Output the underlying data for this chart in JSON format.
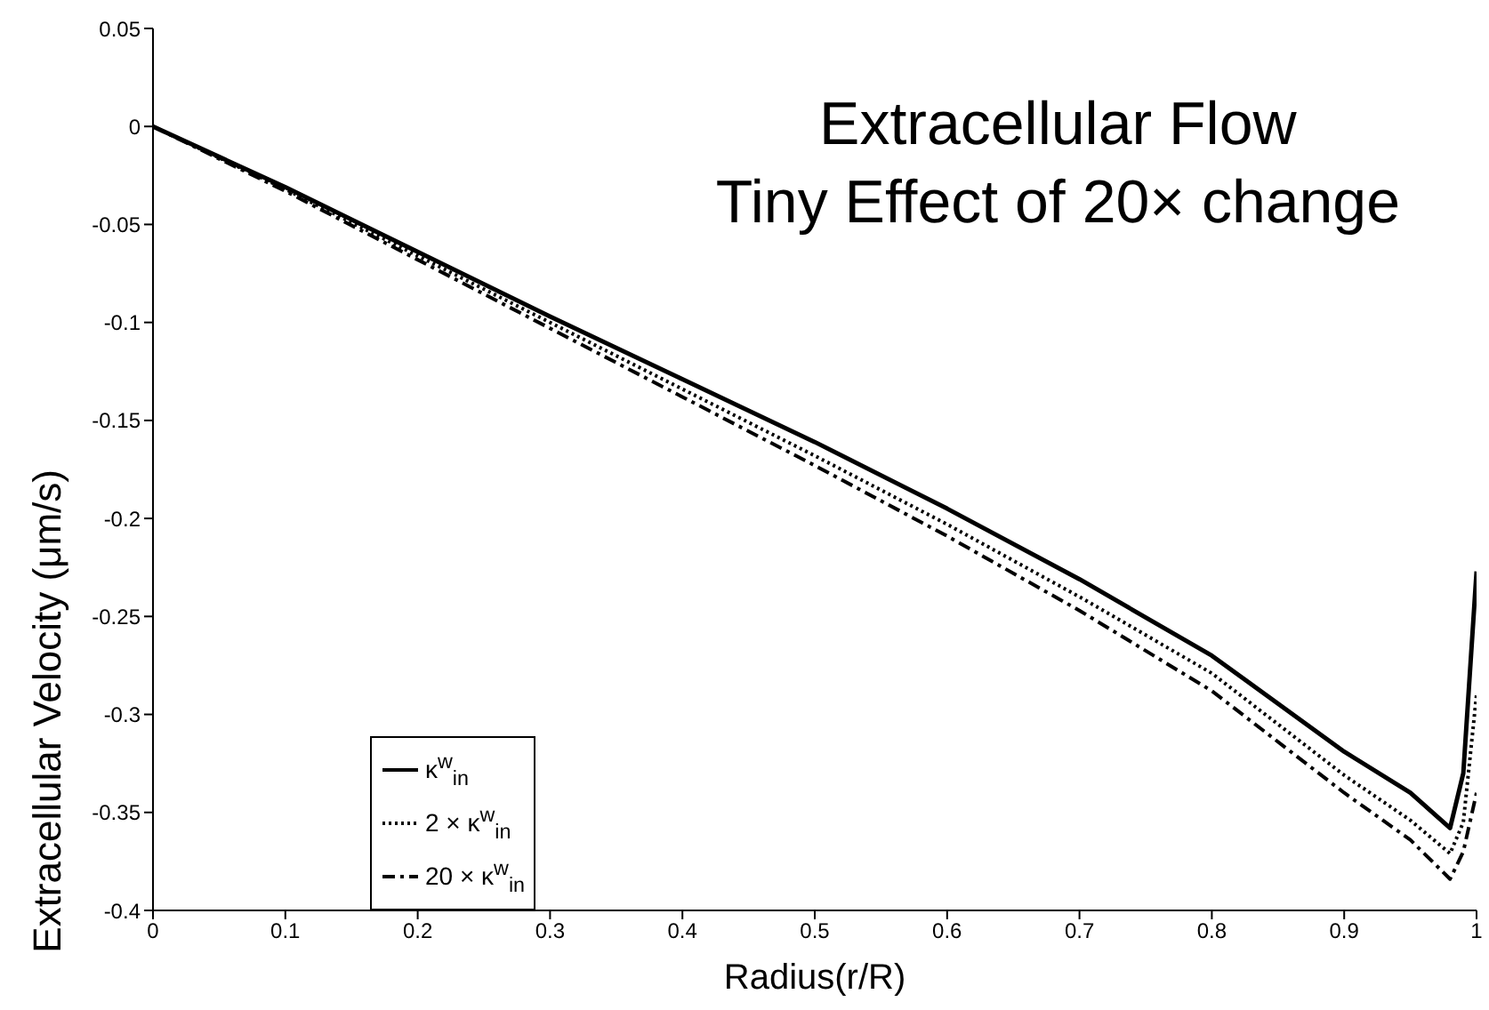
{
  "chart_data": {
    "type": "line",
    "xlabel": "Radius(r/R)",
    "ylabel": "Extracellular Velocity (μm/s)",
    "annotations": [
      "Extracellular Flow",
      "Tiny Effect of 20× change"
    ],
    "x": [
      0,
      0.1,
      0.2,
      0.3,
      0.4,
      0.5,
      0.6,
      0.7,
      0.8,
      0.9,
      0.95,
      0.98,
      0.99,
      1
    ],
    "series": [
      {
        "name": "κ$^{w}$$_{in}$",
        "color": "#000000",
        "line_style": "solid",
        "values": [
          0,
          -0.031,
          -0.064,
          -0.097,
          -0.129,
          -0.161,
          -0.195,
          -0.231,
          -0.27,
          -0.319,
          -0.34,
          -0.358,
          -0.33,
          -0.227
        ]
      },
      {
        "name": "2 × κ$^{w}$$_{in}$",
        "color": "#000000",
        "line_style": "dotted",
        "values": [
          0,
          -0.032,
          -0.066,
          -0.1,
          -0.134,
          -0.168,
          -0.203,
          -0.24,
          -0.279,
          -0.331,
          -0.354,
          -0.371,
          -0.355,
          -0.29
        ]
      },
      {
        "name": "20 × κ$^{w}$$_{in}$",
        "color": "#000000",
        "line_style": "dashed",
        "values": [
          0,
          -0.033,
          -0.068,
          -0.103,
          -0.138,
          -0.173,
          -0.209,
          -0.247,
          -0.288,
          -0.34,
          -0.364,
          -0.384,
          -0.37,
          -0.34
        ]
      }
    ],
    "xlim": [
      0,
      1
    ],
    "xticks": [
      0,
      0.1,
      0.2,
      0.3,
      0.4,
      0.5,
      0.6,
      0.7,
      0.8,
      0.9,
      1
    ],
    "ylim": [
      -0.4,
      0.05
    ],
    "yticks": [
      -0.4,
      -0.35,
      -0.3,
      -0.25,
      -0.2,
      -0.15,
      -0.1,
      -0.05,
      0,
      0.05
    ],
    "grid": false,
    "legend": "bottom left",
    "marker": "none"
  }
}
